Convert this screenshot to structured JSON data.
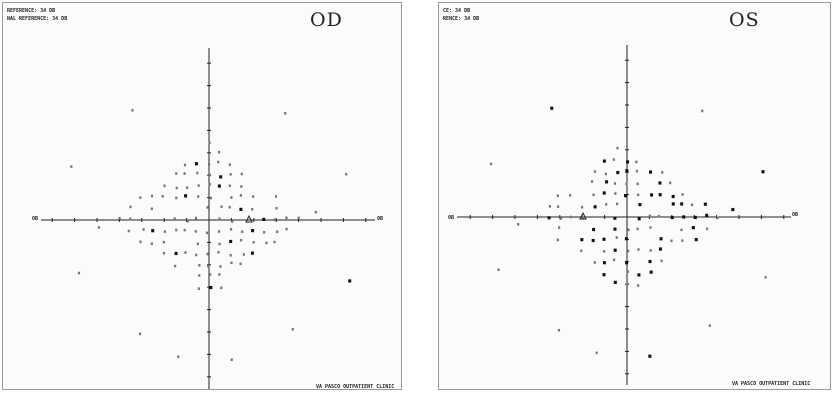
{
  "panels": [
    {
      "eye_label": "OD",
      "header_lines": [
        "REFERENCE: 34 DB",
        "NAL REFERENCE: 34 DB"
      ],
      "footer": "VA PASCO OUTPATIENT CLINIC",
      "axis_labels": {
        "left": "0B",
        "right": "0B"
      }
    },
    {
      "eye_label": "OS",
      "header_lines": [
        "CE: 34 DB",
        "RENCE: 34 DB"
      ],
      "footer": "VA PASCO OUTPATIENT CLINIC",
      "axis_labels": {
        "left": "0B",
        "right": "0B"
      }
    }
  ],
  "colors": {
    "ink": "#222222",
    "border": "#9a9a9a",
    "background": "#fbfbfb"
  }
}
